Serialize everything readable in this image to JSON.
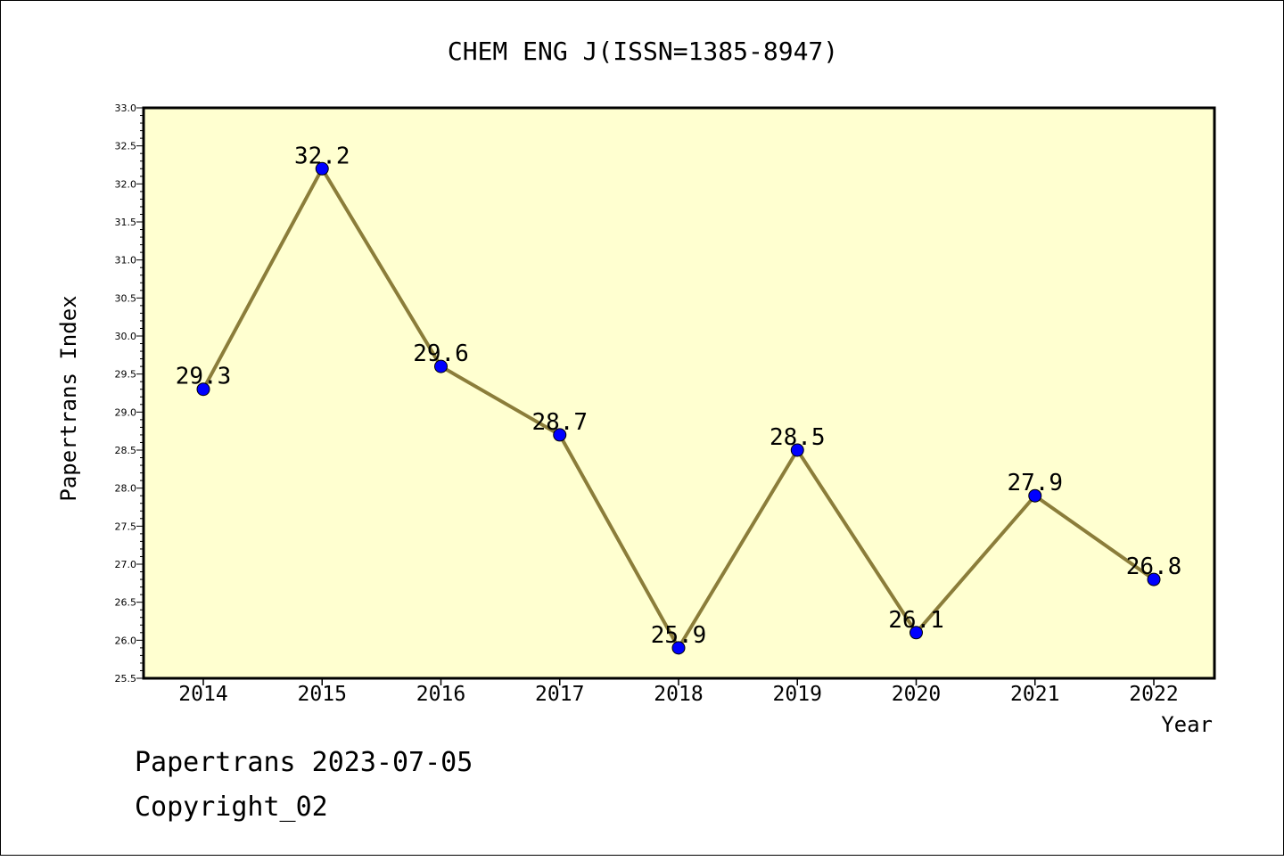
{
  "chart_data": {
    "type": "line",
    "title": "CHEM ENG J(ISSN=1385-8947)",
    "xlabel": "Year",
    "ylabel": "Papertrans Index",
    "x": [
      "2014",
      "2015",
      "2016",
      "2017",
      "2018",
      "2019",
      "2020",
      "2021",
      "2022"
    ],
    "values": [
      29.3,
      32.2,
      29.6,
      28.7,
      25.9,
      28.5,
      26.1,
      27.9,
      26.8
    ],
    "data_labels": [
      "29.3",
      "32.2",
      "29.6",
      "28.7",
      "25.9",
      "28.5",
      "26.1",
      "27.9",
      "26.8"
    ],
    "ylim": [
      25.5,
      33.0
    ],
    "yticks": [
      "25.5",
      "26.0",
      "26.5",
      "27.0",
      "27.5",
      "28.0",
      "28.5",
      "29.0",
      "29.5",
      "30.0",
      "30.5",
      "31.0",
      "31.5",
      "32.0",
      "32.5",
      "33.0"
    ],
    "grid": false,
    "legend": "none",
    "colors": {
      "plot_background": "#ffffd0",
      "line": "#8b7d3a",
      "marker": "#0000ff"
    }
  },
  "footer": {
    "line1": "Papertrans 2023-07-05",
    "line2": "Copyright_02"
  }
}
